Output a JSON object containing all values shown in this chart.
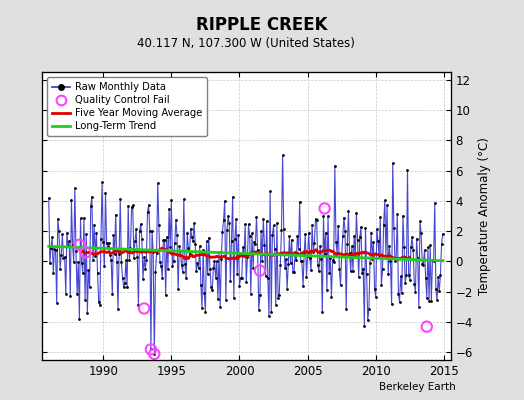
{
  "title": "RIPPLE CREEK",
  "subtitle": "40.117 N, 107.300 W (United States)",
  "ylabel": "Temperature Anomaly (°C)",
  "credit": "Berkeley Earth",
  "xlim": [
    1985.5,
    2015.5
  ],
  "ylim": [
    -6.5,
    12.5
  ],
  "yticks": [
    -6,
    -4,
    -2,
    0,
    2,
    4,
    6,
    8,
    10,
    12
  ],
  "xticks": [
    1990,
    1995,
    2000,
    2005,
    2010,
    2015
  ],
  "bg_color": "#e0e0e0",
  "plot_bg_color": "#ffffff",
  "grid_color": "#c8c8c8",
  "raw_line_color": "#3333cc",
  "raw_dot_color": "#000000",
  "qc_fail_color": "#ff44ff",
  "moving_avg_color": "#dd0000",
  "trend_color": "#22cc22",
  "seed": 7
}
